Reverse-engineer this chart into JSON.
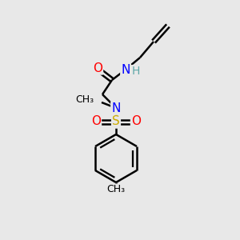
{
  "background_color": "#e8e8e8",
  "bond_color": "#000000",
  "atom_colors": {
    "N": "#0000ff",
    "O": "#ff0000",
    "S": "#ccaa00",
    "H": "#5fa8a8",
    "C": "#000000"
  },
  "figsize": [
    3.0,
    3.0
  ],
  "dpi": 100,
  "bond_lw": 1.8,
  "font_size": 11
}
